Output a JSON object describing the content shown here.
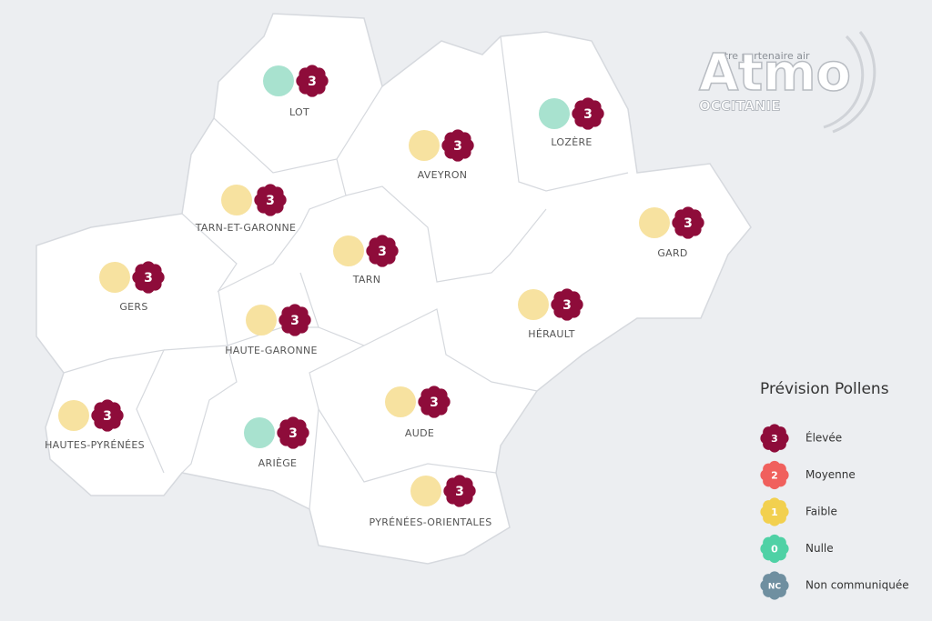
{
  "logo": {
    "tagline": "votre partenaire air",
    "name": "Atmo",
    "region": "OCCITANIE"
  },
  "departments": [
    {
      "name": "LOT",
      "circle_color": "#a8e2cf",
      "level": 3
    },
    {
      "name": "LOZÈRE",
      "circle_color": "#a8e2cf",
      "level": 3
    },
    {
      "name": "AVEYRON",
      "circle_color": "#f7e2a0",
      "level": 3
    },
    {
      "name": "TARN-ET-GARONNE",
      "circle_color": "#f7e2a0",
      "level": 3
    },
    {
      "name": "GARD",
      "circle_color": "#f7e2a0",
      "level": 3
    },
    {
      "name": "TARN",
      "circle_color": "#f7e2a0",
      "level": 3
    },
    {
      "name": "GERS",
      "circle_color": "#f7e2a0",
      "level": 3
    },
    {
      "name": "HÉRAULT",
      "circle_color": "#f7e2a0",
      "level": 3
    },
    {
      "name": "HAUTE-GARONNE",
      "circle_color": "#f7e2a0",
      "level": 3
    },
    {
      "name": "AUDE",
      "circle_color": "#f7e2a0",
      "level": 3
    },
    {
      "name": "HAUTES-PYRÉNÉES",
      "circle_color": "#f7e2a0",
      "level": 3
    },
    {
      "name": "ARIÈGE",
      "circle_color": "#a8e2cf",
      "level": 3
    },
    {
      "name": "PYRÉNÉES-ORIENTALES",
      "circle_color": "#f7e2a0",
      "level": 3
    }
  ],
  "legend": {
    "title": "Prévision Pollens",
    "items": [
      {
        "level": 3,
        "label": "Élevée",
        "color": "#8e0c3a"
      },
      {
        "level": 2,
        "label": "Moyenne",
        "color": "#f0605d"
      },
      {
        "level": 1,
        "label": "Faible",
        "color": "#f2d04f"
      },
      {
        "level": 0,
        "label": "Nulle",
        "color": "#4fd1a5"
      },
      {
        "level": "NC",
        "label": "Non communiquée",
        "color": "#6f8fa0"
      }
    ]
  }
}
